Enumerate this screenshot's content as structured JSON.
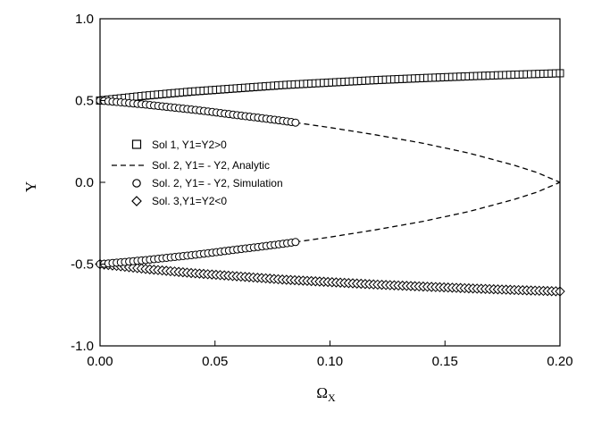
{
  "chart_data": {
    "type": "scatter",
    "xlabel": "Ω",
    "xlabel_subscript": "X",
    "ylabel": "Y",
    "xlim": [
      0.0,
      0.2
    ],
    "ylim": [
      -1.0,
      1.0
    ],
    "x_ticks": [
      "0.00",
      "0.05",
      "0.10",
      "0.15",
      "0.20"
    ],
    "y_ticks": [
      "1.0",
      "0.5",
      "0.0",
      "-0.5",
      "-1.0"
    ],
    "grid": false,
    "legend_position": "center-left",
    "series": [
      {
        "name": "Sol 1, Y1=Y2>0",
        "marker": "square",
        "x": [
          0.0,
          0.02,
          0.04,
          0.06,
          0.08,
          0.1,
          0.12,
          0.14,
          0.16,
          0.18,
          0.2
        ],
        "y": [
          0.5,
          0.53,
          0.555,
          0.575,
          0.595,
          0.61,
          0.625,
          0.637,
          0.648,
          0.658,
          0.667
        ]
      },
      {
        "name": "Sol. 2, Y1= - Y2, Analytic",
        "marker": "dashed-line",
        "x": [
          0.0,
          0.02,
          0.04,
          0.06,
          0.08,
          0.085,
          0.1,
          0.12,
          0.14,
          0.16,
          0.18,
          0.19,
          0.2
        ],
        "y": [
          0.5,
          0.475,
          0.445,
          0.41,
          0.375,
          0.365,
          0.335,
          0.29,
          0.24,
          0.18,
          0.105,
          0.06,
          0.0
        ]
      },
      {
        "name": "Sol. 2, Y1= - Y2, Simulation",
        "marker": "circle",
        "x": [
          0.0,
          0.01,
          0.02,
          0.03,
          0.04,
          0.05,
          0.06,
          0.07,
          0.08,
          0.085
        ],
        "y": [
          0.5,
          0.488,
          0.475,
          0.46,
          0.445,
          0.428,
          0.41,
          0.393,
          0.375,
          0.365
        ]
      },
      {
        "name": "Sol. 3,Y1=Y2<0",
        "marker": "diamond",
        "x": [
          0.0,
          0.02,
          0.04,
          0.06,
          0.08,
          0.1,
          0.12,
          0.14,
          0.16,
          0.18,
          0.2
        ],
        "y": [
          -0.5,
          -0.53,
          -0.555,
          -0.575,
          -0.595,
          -0.61,
          -0.625,
          -0.637,
          -0.648,
          -0.658,
          -0.667
        ]
      }
    ]
  }
}
